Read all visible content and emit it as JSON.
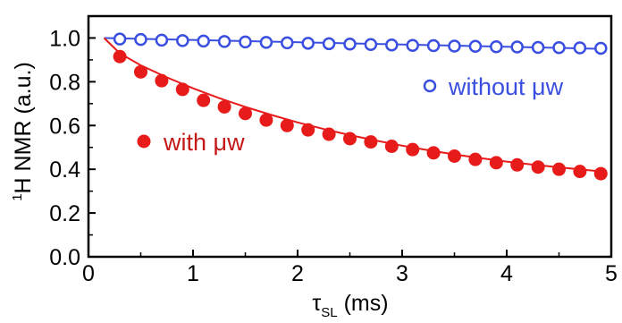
{
  "chart_data": {
    "type": "scatter",
    "title": "",
    "xlabel_symbol": "τ",
    "xlabel_subscript": "SL",
    "xlabel_rest": " (ms)",
    "ylabel_superscript": "1",
    "ylabel_rest": "H NMR (a.u.)",
    "xlim": [
      0,
      5
    ],
    "ylim": [
      0,
      1.1
    ],
    "xticks": [
      0,
      1,
      2,
      3,
      4,
      5
    ],
    "yticks": [
      0.0,
      0.2,
      0.4,
      0.6,
      0.8,
      1.0
    ],
    "xtick_labels": [
      "0",
      "1",
      "2",
      "3",
      "4",
      "5"
    ],
    "ytick_labels": [
      "0.0",
      "0.2",
      "0.4",
      "0.6",
      "0.8",
      "1.0"
    ],
    "grid": false,
    "series": [
      {
        "name": "without μw",
        "marker": "open-circle",
        "color": "#3a4fe0",
        "x": [
          0.3,
          0.5,
          0.7,
          0.9,
          1.1,
          1.3,
          1.5,
          1.7,
          1.9,
          2.1,
          2.3,
          2.5,
          2.7,
          2.9,
          3.1,
          3.3,
          3.5,
          3.7,
          3.9,
          4.1,
          4.3,
          4.5,
          4.7,
          4.9
        ],
        "y": [
          0.995,
          0.993,
          0.99,
          0.988,
          0.986,
          0.984,
          0.982,
          0.98,
          0.978,
          0.976,
          0.974,
          0.972,
          0.97,
          0.968,
          0.966,
          0.965,
          0.963,
          0.962,
          0.96,
          0.959,
          0.957,
          0.956,
          0.955,
          0.953
        ],
        "fit": {
          "x": [
            0.15,
            4.95
          ],
          "y": [
            1.0,
            0.95
          ]
        }
      },
      {
        "name": "with μw",
        "marker": "filled-circle",
        "color": "#e81b1b",
        "x": [
          0.3,
          0.5,
          0.7,
          0.9,
          1.1,
          1.3,
          1.5,
          1.7,
          1.9,
          2.1,
          2.3,
          2.5,
          2.7,
          2.9,
          3.1,
          3.3,
          3.5,
          3.7,
          3.9,
          4.1,
          4.3,
          4.5,
          4.7,
          4.9
        ],
        "y": [
          0.915,
          0.845,
          0.805,
          0.765,
          0.715,
          0.685,
          0.655,
          0.625,
          0.6,
          0.58,
          0.56,
          0.54,
          0.525,
          0.505,
          0.49,
          0.475,
          0.46,
          0.445,
          0.43,
          0.42,
          0.41,
          0.4,
          0.39,
          0.38
        ],
        "fit": {
          "x": [
            0.15,
            0.3,
            0.5,
            0.75,
            1.0,
            1.25,
            1.5,
            1.75,
            2.0,
            2.25,
            2.5,
            2.75,
            3.0,
            3.25,
            3.5,
            3.75,
            4.0,
            4.25,
            4.5,
            4.75,
            4.95
          ],
          "y": [
            1.0,
            0.93,
            0.875,
            0.82,
            0.77,
            0.725,
            0.685,
            0.648,
            0.614,
            0.584,
            0.556,
            0.531,
            0.508,
            0.487,
            0.468,
            0.451,
            0.435,
            0.421,
            0.409,
            0.397,
            0.388
          ]
        }
      }
    ],
    "legend": [
      {
        "label": "without μw",
        "marker": "open-circle",
        "color": "#3a4fe0"
      },
      {
        "label": "with μw",
        "marker": "filled-circle",
        "color": "#e81b1b"
      }
    ]
  }
}
